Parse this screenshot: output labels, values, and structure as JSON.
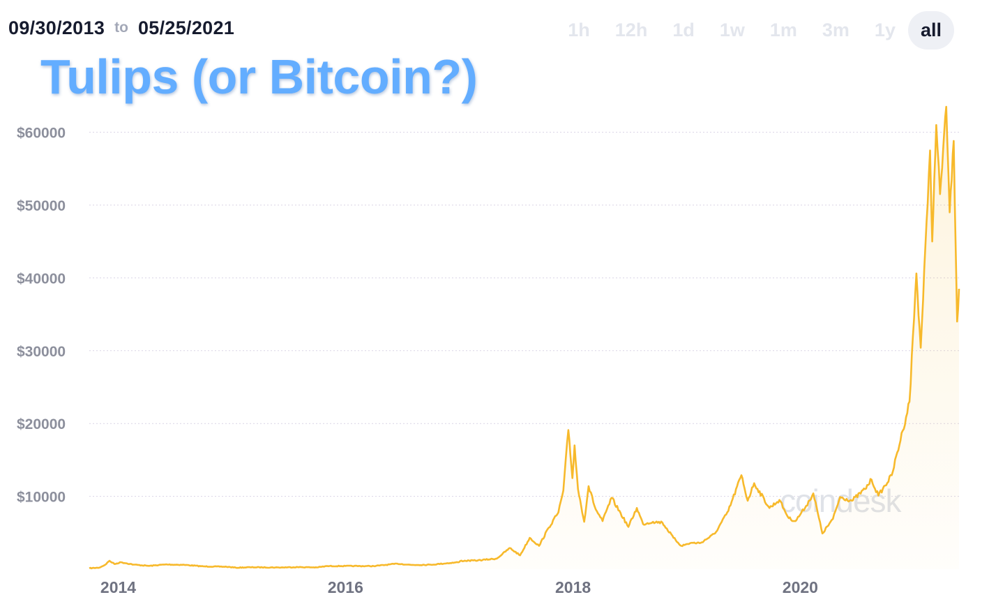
{
  "header": {
    "start_date": "09/30/2013",
    "to_label": "to",
    "end_date": "05/25/2021"
  },
  "ranges": [
    "1h",
    "12h",
    "1d",
    "1w",
    "1m",
    "3m",
    "1y",
    "all"
  ],
  "active_range": "all",
  "title": "Tulips (or Bitcoin?)",
  "watermark": "coindesk",
  "colors": {
    "line": "#f7b92b",
    "title": "#63adff",
    "grid": "#d9d3e6",
    "axis_text": "#8c8f9c"
  },
  "chart_data": {
    "type": "area",
    "title": "Tulips (or Bitcoin?)",
    "xlabel": "",
    "ylabel": "",
    "x_ticks": [
      "2014",
      "2016",
      "2018",
      "2020"
    ],
    "y_ticks": [
      "$10000",
      "$20000",
      "$30000",
      "$40000",
      "$50000",
      "$60000"
    ],
    "xlim": [
      "2013-09-30",
      "2021-05-25"
    ],
    "ylim": [
      0,
      64000
    ],
    "grid": true,
    "series": [
      {
        "points": [
          [
            "2013-09-30",
            125
          ],
          [
            "2013-11-01",
            200
          ],
          [
            "2013-11-20",
            600
          ],
          [
            "2013-12-04",
            1150
          ],
          [
            "2013-12-20",
            700
          ],
          [
            "2014-01-10",
            950
          ],
          [
            "2014-02-20",
            620
          ],
          [
            "2014-04-10",
            450
          ],
          [
            "2014-06-01",
            640
          ],
          [
            "2014-08-01",
            590
          ],
          [
            "2014-10-01",
            380
          ],
          [
            "2014-12-15",
            330
          ],
          [
            "2015-01-14",
            200
          ],
          [
            "2015-03-01",
            260
          ],
          [
            "2015-06-01",
            230
          ],
          [
            "2015-08-01",
            280
          ],
          [
            "2015-10-01",
            240
          ],
          [
            "2015-11-04",
            420
          ],
          [
            "2016-01-01",
            430
          ],
          [
            "2016-04-01",
            420
          ],
          [
            "2016-06-16",
            750
          ],
          [
            "2016-08-01",
            580
          ],
          [
            "2016-10-01",
            610
          ],
          [
            "2016-12-31",
            960
          ],
          [
            "2017-01-04",
            1130
          ],
          [
            "2017-03-01",
            1200
          ],
          [
            "2017-05-01",
            1450
          ],
          [
            "2017-06-12",
            2900
          ],
          [
            "2017-07-15",
            1900
          ],
          [
            "2017-08-15",
            4300
          ],
          [
            "2017-09-14",
            3200
          ],
          [
            "2017-10-15",
            5700
          ],
          [
            "2017-11-15",
            7800
          ],
          [
            "2017-12-01",
            10800
          ],
          [
            "2017-12-17",
            19100
          ],
          [
            "2017-12-30",
            12500
          ],
          [
            "2018-01-06",
            17000
          ],
          [
            "2018-01-17",
            11000
          ],
          [
            "2018-02-06",
            6500
          ],
          [
            "2018-02-20",
            11400
          ],
          [
            "2018-03-15",
            8200
          ],
          [
            "2018-04-06",
            6600
          ],
          [
            "2018-05-05",
            9800
          ],
          [
            "2018-06-28",
            5800
          ],
          [
            "2018-07-25",
            8400
          ],
          [
            "2018-08-14",
            6200
          ],
          [
            "2018-09-15",
            6500
          ],
          [
            "2018-10-15",
            6400
          ],
          [
            "2018-11-20",
            4300
          ],
          [
            "2018-12-15",
            3200
          ],
          [
            "2019-01-15",
            3600
          ],
          [
            "2019-02-15",
            3600
          ],
          [
            "2019-04-02",
            4900
          ],
          [
            "2019-05-15",
            8000
          ],
          [
            "2019-06-26",
            12900
          ],
          [
            "2019-07-16",
            9400
          ],
          [
            "2019-08-06",
            11800
          ],
          [
            "2019-09-24",
            8400
          ],
          [
            "2019-10-26",
            9500
          ],
          [
            "2019-11-25",
            7000
          ],
          [
            "2019-12-17",
            6600
          ],
          [
            "2020-01-20",
            8700
          ],
          [
            "2020-02-12",
            10400
          ],
          [
            "2020-03-12",
            4900
          ],
          [
            "2020-04-15",
            6900
          ],
          [
            "2020-05-08",
            9900
          ],
          [
            "2020-06-15",
            9400
          ],
          [
            "2020-07-27",
            11000
          ],
          [
            "2020-08-17",
            12300
          ],
          [
            "2020-09-08",
            10100
          ],
          [
            "2020-10-21",
            12900
          ],
          [
            "2020-11-25",
            19000
          ],
          [
            "2020-12-17",
            23000
          ],
          [
            "2021-01-08",
            40600
          ],
          [
            "2021-01-22",
            30400
          ],
          [
            "2021-02-21",
            57500
          ],
          [
            "2021-02-28",
            45000
          ],
          [
            "2021-03-13",
            61000
          ],
          [
            "2021-03-25",
            51500
          ],
          [
            "2021-04-14",
            63500
          ],
          [
            "2021-04-25",
            49000
          ],
          [
            "2021-05-08",
            58800
          ],
          [
            "2021-05-19",
            34000
          ],
          [
            "2021-05-25",
            38500
          ]
        ]
      }
    ]
  }
}
